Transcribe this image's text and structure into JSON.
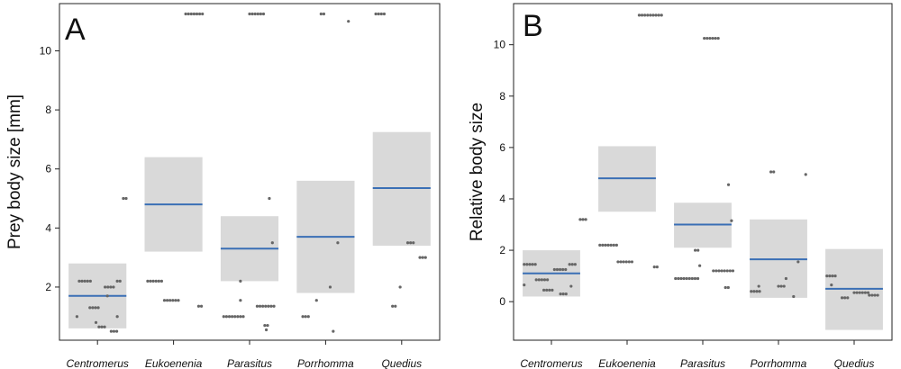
{
  "chart_data": [
    {
      "type": "scatter",
      "panel_label": "A",
      "title": "",
      "xlabel": "",
      "ylabel": "Prey body size [mm]",
      "ylim": [
        0.2,
        11.6
      ],
      "yticks": [
        2,
        4,
        6,
        8,
        10
      ],
      "categories": [
        "Centromerus",
        "Eukoenenia",
        "Parasitus",
        "Porrhomma",
        "Quedius"
      ],
      "grid": false,
      "colors": {
        "interval": "#d9d9d9",
        "mean": "#3a6fb5",
        "points": "#666666"
      },
      "groups": [
        {
          "name": "Centromerus",
          "mean": 1.7,
          "ci": [
            0.6,
            2.8
          ],
          "points": [
            {
              "dx": -0.24,
              "y": 2.2,
              "n": 5
            },
            {
              "dx": -0.27,
              "y": 1.0,
              "n": 1
            },
            {
              "dx": -0.1,
              "y": 1.3,
              "n": 4
            },
            {
              "dx": -0.02,
              "y": 0.8,
              "n": 1
            },
            {
              "dx": 0.02,
              "y": 0.65,
              "n": 3
            },
            {
              "dx": 0.1,
              "y": 2.0,
              "n": 4
            },
            {
              "dx": 0.13,
              "y": 1.7,
              "n": 1
            },
            {
              "dx": 0.18,
              "y": 0.5,
              "n": 3
            },
            {
              "dx": 0.26,
              "y": 2.2,
              "n": 2
            },
            {
              "dx": 0.26,
              "y": 1.0,
              "n": 1
            },
            {
              "dx": 0.34,
              "y": 5.0,
              "n": 2
            }
          ]
        },
        {
          "name": "Eukoenenia",
          "mean": 4.8,
          "ci": [
            3.2,
            6.4
          ],
          "points": [
            {
              "dx": -0.34,
              "y": 2.2,
              "n": 6
            },
            {
              "dx": -0.12,
              "y": 1.55,
              "n": 6
            },
            {
              "dx": 0.16,
              "y": 11.25,
              "n": 7
            },
            {
              "dx": 0.33,
              "y": 1.35,
              "n": 2
            }
          ]
        },
        {
          "name": "Parasitus",
          "mean": 3.3,
          "ci": [
            2.2,
            4.4
          ],
          "points": [
            {
              "dx": -0.34,
              "y": 1.0,
              "n": 8
            },
            {
              "dx": -0.12,
              "y": 2.2,
              "n": 1
            },
            {
              "dx": -0.12,
              "y": 1.55,
              "n": 1
            },
            {
              "dx": 0.0,
              "y": 11.25,
              "n": 6
            },
            {
              "dx": 0.1,
              "y": 1.35,
              "n": 7
            },
            {
              "dx": 0.2,
              "y": 0.7,
              "n": 2
            },
            {
              "dx": 0.22,
              "y": 0.55,
              "n": 1
            },
            {
              "dx": 0.26,
              "y": 5.0,
              "n": 1
            },
            {
              "dx": 0.3,
              "y": 3.5,
              "n": 1
            }
          ]
        },
        {
          "name": "Porrhomma",
          "mean": 3.7,
          "ci": [
            1.8,
            5.6
          ],
          "points": [
            {
              "dx": -0.3,
              "y": 1.0,
              "n": 3
            },
            {
              "dx": -0.12,
              "y": 1.55,
              "n": 1
            },
            {
              "dx": -0.06,
              "y": 11.25,
              "n": 2
            },
            {
              "dx": 0.06,
              "y": 2.0,
              "n": 1
            },
            {
              "dx": 0.1,
              "y": 0.5,
              "n": 1
            },
            {
              "dx": 0.16,
              "y": 3.5,
              "n": 1
            },
            {
              "dx": 0.3,
              "y": 11.0,
              "n": 1
            }
          ]
        },
        {
          "name": "Quedius",
          "mean": 5.35,
          "ci": [
            3.4,
            7.25
          ],
          "points": [
            {
              "dx": -0.34,
              "y": 11.25,
              "n": 4
            },
            {
              "dx": -0.12,
              "y": 1.35,
              "n": 2
            },
            {
              "dx": -0.02,
              "y": 2.0,
              "n": 1
            },
            {
              "dx": 0.08,
              "y": 3.5,
              "n": 3
            },
            {
              "dx": 0.24,
              "y": 3.0,
              "n": 3
            }
          ]
        }
      ]
    },
    {
      "type": "scatter",
      "panel_label": "B",
      "title": "",
      "xlabel": "",
      "ylabel": "Relative body size",
      "ylim": [
        -1.5,
        11.6
      ],
      "yticks": [
        0,
        2,
        4,
        6,
        8,
        10
      ],
      "categories": [
        "Centromerus",
        "Eukoenenia",
        "Parasitus",
        "Porrhomma",
        "Quedius"
      ],
      "grid": false,
      "colors": {
        "interval": "#d9d9d9",
        "mean": "#3a6fb5",
        "points": "#666666"
      },
      "groups": [
        {
          "name": "Centromerus",
          "mean": 1.1,
          "ci": [
            0.2,
            2.0
          ],
          "points": [
            {
              "dx": -0.36,
              "y": 1.45,
              "n": 5
            },
            {
              "dx": -0.36,
              "y": 0.65,
              "n": 1
            },
            {
              "dx": -0.2,
              "y": 0.85,
              "n": 5
            },
            {
              "dx": -0.1,
              "y": 0.45,
              "n": 4
            },
            {
              "dx": 0.04,
              "y": 1.25,
              "n": 5
            },
            {
              "dx": 0.12,
              "y": 0.3,
              "n": 3
            },
            {
              "dx": 0.24,
              "y": 1.45,
              "n": 3
            },
            {
              "dx": 0.26,
              "y": 0.6,
              "n": 1
            },
            {
              "dx": 0.38,
              "y": 3.2,
              "n": 3
            }
          ]
        },
        {
          "name": "Eukoenenia",
          "mean": 4.8,
          "ci": [
            3.5,
            6.05
          ],
          "points": [
            {
              "dx": -0.36,
              "y": 2.2,
              "n": 7
            },
            {
              "dx": -0.12,
              "y": 1.55,
              "n": 6
            },
            {
              "dx": 0.16,
              "y": 11.15,
              "n": 9
            },
            {
              "dx": 0.36,
              "y": 1.35,
              "n": 2
            }
          ]
        },
        {
          "name": "Parasitus",
          "mean": 3.0,
          "ci": [
            2.1,
            3.85
          ],
          "points": [
            {
              "dx": -0.36,
              "y": 0.9,
              "n": 9
            },
            {
              "dx": -0.1,
              "y": 2.0,
              "n": 2
            },
            {
              "dx": -0.04,
              "y": 1.4,
              "n": 1
            },
            {
              "dx": 0.02,
              "y": 10.25,
              "n": 6
            },
            {
              "dx": 0.14,
              "y": 1.2,
              "n": 8
            },
            {
              "dx": 0.3,
              "y": 0.55,
              "n": 2
            },
            {
              "dx": 0.34,
              "y": 4.55,
              "n": 1
            },
            {
              "dx": 0.38,
              "y": 3.15,
              "n": 1
            }
          ]
        },
        {
          "name": "Porrhomma",
          "mean": 1.65,
          "ci": [
            0.15,
            3.2
          ],
          "points": [
            {
              "dx": -0.36,
              "y": 0.4,
              "n": 4
            },
            {
              "dx": -0.26,
              "y": 0.6,
              "n": 1
            },
            {
              "dx": -0.1,
              "y": 5.05,
              "n": 2
            },
            {
              "dx": 0.0,
              "y": 0.6,
              "n": 3
            },
            {
              "dx": 0.1,
              "y": 0.9,
              "n": 1
            },
            {
              "dx": 0.2,
              "y": 0.2,
              "n": 1
            },
            {
              "dx": 0.26,
              "y": 1.55,
              "n": 1
            },
            {
              "dx": 0.36,
              "y": 4.95,
              "n": 1
            }
          ]
        },
        {
          "name": "Quedius",
          "mean": 0.5,
          "ci": [
            -1.1,
            2.05
          ],
          "points": [
            {
              "dx": -0.36,
              "y": 1.0,
              "n": 4
            },
            {
              "dx": -0.3,
              "y": 0.65,
              "n": 1
            },
            {
              "dx": -0.16,
              "y": 0.15,
              "n": 3
            },
            {
              "dx": 0.0,
              "y": 0.35,
              "n": 6
            },
            {
              "dx": 0.2,
              "y": 0.25,
              "n": 4
            }
          ]
        }
      ]
    }
  ]
}
